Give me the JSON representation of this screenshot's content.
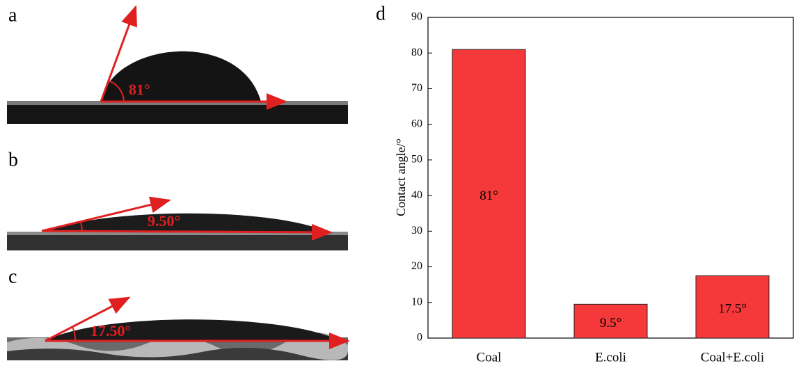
{
  "panels": [
    {
      "label": "a",
      "angle_label": "81°"
    },
    {
      "label": "b",
      "angle_label": "9.50°"
    },
    {
      "label": "c",
      "angle_label": "17.50°"
    }
  ],
  "chart_data": {
    "type": "bar",
    "panel_label": "d",
    "ylabel": "Contact angle/°",
    "categories": [
      "Coal",
      "E.coli",
      "Coal+E.coli"
    ],
    "values": [
      81,
      9.5,
      17.5
    ],
    "value_labels": [
      "81°",
      "9.5°",
      "17.5°"
    ],
    "color": "#f5393a",
    "ylim": [
      0,
      90
    ],
    "yticks": [
      0,
      10,
      20,
      30,
      40,
      50,
      60,
      70,
      80,
      90
    ]
  }
}
